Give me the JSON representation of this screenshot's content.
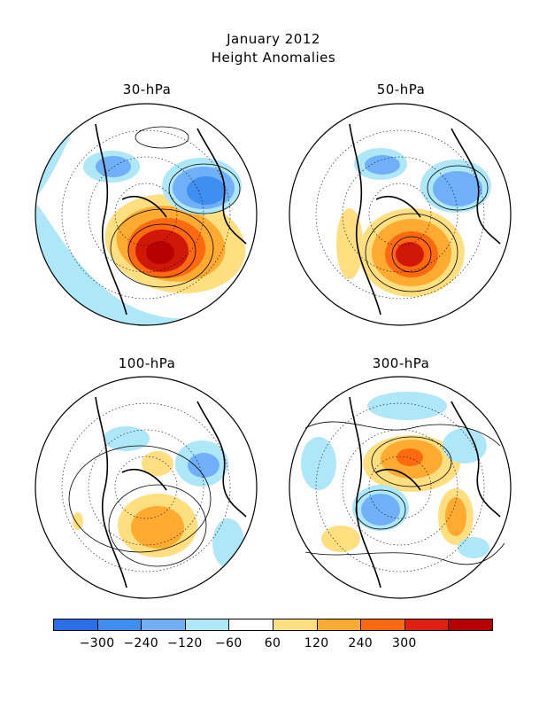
{
  "figure": {
    "title_line1": "January 2012",
    "title_line2": "Height Anomalies"
  },
  "panels": [
    {
      "label": "30-hPa"
    },
    {
      "label": "50-hPa"
    },
    {
      "label": "100-hPa"
    },
    {
      "label": "300-hPa"
    }
  ],
  "legend": {
    "colors": [
      "#2b6fe8",
      "#3f8ff0",
      "#70b0f8",
      "#aee7f8",
      "#ffffff",
      "#ffdf80",
      "#ffaa30",
      "#ff6a10",
      "#e02010",
      "#b80000"
    ],
    "labels": [
      "-300",
      "-240",
      "-120",
      "-60",
      "60",
      "120",
      "240",
      "300"
    ]
  }
}
